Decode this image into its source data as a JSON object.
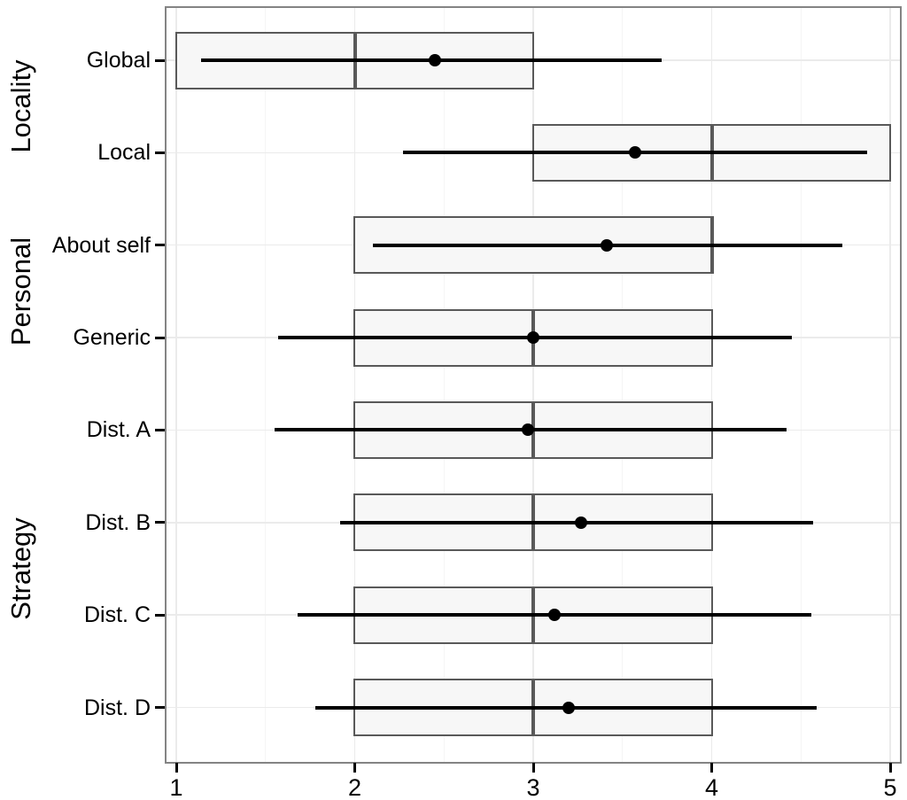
{
  "chart_data": {
    "type": "boxplot",
    "orientation": "horizontal",
    "title": "",
    "xlabel": "",
    "ylabel": "",
    "x_axis": {
      "tick_labels": [
        "1",
        "2",
        "3",
        "4",
        "5"
      ],
      "tick_values": [
        1,
        2,
        3,
        4,
        5
      ],
      "minor_gridlines": [
        1.5,
        2.5,
        3.5,
        4.5
      ],
      "range_shown": [
        0.94,
        5.06
      ]
    },
    "groups": [
      {
        "label": "Locality",
        "rows": [
          "Global",
          "Local"
        ]
      },
      {
        "label": "Personal",
        "rows": [
          "About self",
          "Generic"
        ]
      },
      {
        "label": "Strategy",
        "rows": [
          "Dist. A",
          "Dist. B",
          "Dist. C",
          "Dist. D"
        ]
      }
    ],
    "rows": [
      {
        "label": "Global",
        "group": "Locality",
        "whisker_low": 1.14,
        "q1": 1,
        "median": 2,
        "q3": 3,
        "whisker_high": 3.72,
        "mean": 2.45
      },
      {
        "label": "Local",
        "group": "Locality",
        "whisker_low": 2.27,
        "q1": 3,
        "median": 4,
        "q3": 5,
        "whisker_high": 4.87,
        "mean": 3.57
      },
      {
        "label": "About self",
        "group": "Personal",
        "whisker_low": 2.1,
        "q1": 2,
        "median": 4,
        "q3": 4,
        "whisker_high": 4.73,
        "mean": 3.41
      },
      {
        "label": "Generic",
        "group": "Personal",
        "whisker_low": 1.57,
        "q1": 2,
        "median": 3,
        "q3": 4,
        "whisker_high": 4.45,
        "mean": 3.0
      },
      {
        "label": "Dist. A",
        "group": "Strategy",
        "whisker_low": 1.55,
        "q1": 2,
        "median": 3,
        "q3": 4,
        "whisker_high": 4.42,
        "mean": 2.97
      },
      {
        "label": "Dist. B",
        "group": "Strategy",
        "whisker_low": 1.92,
        "q1": 2,
        "median": 3,
        "q3": 4,
        "whisker_high": 4.57,
        "mean": 3.27
      },
      {
        "label": "Dist. C",
        "group": "Strategy",
        "whisker_low": 1.68,
        "q1": 2,
        "median": 3,
        "q3": 4,
        "whisker_high": 4.56,
        "mean": 3.12
      },
      {
        "label": "Dist. D",
        "group": "Strategy",
        "whisker_low": 1.78,
        "q1": 2,
        "median": 3,
        "q3": 4,
        "whisker_high": 4.59,
        "mean": 3.2
      }
    ],
    "legend": null,
    "grid": true,
    "colors": {
      "background": "#ffffff",
      "panel_border": "#848484",
      "gridline_major": "#ebebeb",
      "gridline_minor": "#f5f5f5",
      "box_fill": "#f7f7f7",
      "box_border": "#595959",
      "median_line": "#595959",
      "whisker_line": "#000000",
      "mean_dot": "#000000",
      "tick_mark": "#000000",
      "text": "#000000"
    }
  }
}
